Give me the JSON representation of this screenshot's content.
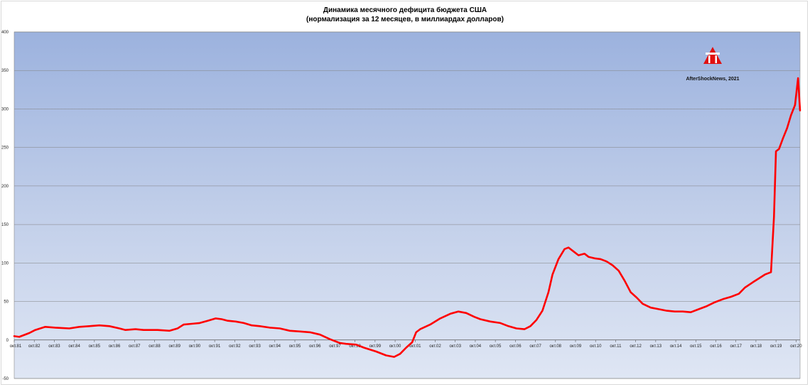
{
  "chart_data": {
    "type": "line",
    "title": "Динамика месячного дефицита бюджета США",
    "subtitle": "(нормализация за 12 месяцев, в миллиардах долларов)",
    "xlabel": "",
    "ylabel": "",
    "ylim": [
      -50,
      400
    ],
    "yticks": [
      "-50",
      "0",
      "50",
      "100",
      "150",
      "200",
      "250",
      "300",
      "350",
      "400"
    ],
    "x_tick_labels": [
      "окт.81",
      "окт.82",
      "окт.83",
      "окт.84",
      "окт.85",
      "окт.86",
      "окт.87",
      "окт.88",
      "окт.89",
      "окт.90",
      "окт.91",
      "окт.92",
      "окт.93",
      "окт.94",
      "окт.95",
      "окт.96",
      "окт.97",
      "окт.98",
      "окт.99",
      "окт.00",
      "окт.01",
      "окт.02",
      "окт.03",
      "окт.04",
      "окт.05",
      "окт.06",
      "окт.07",
      "окт.08",
      "окт.09",
      "окт.10",
      "окт.11",
      "окт.12",
      "окт.13",
      "окт.14",
      "окт.15",
      "окт.16",
      "окт.17",
      "окт.18",
      "окт.19",
      "окт.20"
    ],
    "grid": true,
    "line_color": "#ff0000",
    "series": [
      {
        "name": "",
        "x": [
          1981.75,
          1982.0,
          1982.5,
          1982.8,
          1983.3,
          1983.8,
          1984.5,
          1985.0,
          1985.5,
          1986.0,
          1986.5,
          1987.0,
          1987.3,
          1987.8,
          1988.2,
          1988.6,
          1988.9,
          1989.5,
          1989.9,
          1990.2,
          1990.6,
          1991.0,
          1991.4,
          1991.8,
          1992.1,
          1992.4,
          1992.8,
          1993.2,
          1993.6,
          1994.0,
          1994.5,
          1995.0,
          1995.5,
          1996.0,
          1996.5,
          1997.0,
          1997.5,
          1998.0,
          1998.3,
          1998.8,
          1999.2,
          1999.8,
          2000.3,
          2000.7,
          2001.0,
          2001.3,
          2001.6,
          2001.8,
          2002.0,
          2002.5,
          2003.0,
          2003.5,
          2003.9,
          2004.3,
          2004.7,
          2005.0,
          2005.5,
          2006.0,
          2006.4,
          2006.8,
          2007.2,
          2007.5,
          2007.8,
          2008.1,
          2008.4,
          2008.6,
          2008.9,
          2009.2,
          2009.4,
          2009.7,
          2009.9,
          2010.2,
          2010.4,
          2010.7,
          2011.0,
          2011.3,
          2011.6,
          2011.9,
          2012.2,
          2012.5,
          2012.8,
          2013.1,
          2013.5,
          2013.9,
          2014.3,
          2014.7,
          2015.1,
          2015.5,
          2015.9,
          2016.3,
          2016.7,
          2017.1,
          2017.5,
          2017.9,
          2018.2,
          2018.6,
          2018.9,
          2019.2,
          2019.5,
          2019.65,
          2019.75,
          2019.9,
          2020.1,
          2020.3,
          2020.5,
          2020.7,
          2020.85,
          2020.95
        ],
        "y": [
          5,
          4,
          9,
          13,
          17,
          16,
          15,
          17,
          18,
          19,
          18,
          15,
          13,
          14,
          13,
          13,
          13,
          12,
          15,
          20,
          21,
          22,
          25,
          28,
          27,
          25,
          24,
          22,
          19,
          18,
          16,
          15,
          12,
          11,
          10,
          7,
          1,
          -4,
          -5,
          -6,
          -10,
          -15,
          -20,
          -22,
          -18,
          -10,
          -3,
          10,
          14,
          20,
          28,
          34,
          37,
          35,
          30,
          27,
          24,
          22,
          18,
          15,
          14,
          18,
          26,
          38,
          62,
          85,
          105,
          118,
          120,
          114,
          110,
          112,
          108,
          106,
          105,
          102,
          97,
          90,
          77,
          62,
          55,
          47,
          42,
          40,
          38,
          37,
          37,
          36,
          40,
          44,
          49,
          53,
          56,
          60,
          68,
          75,
          80,
          85,
          88,
          160,
          245,
          248,
          262,
          275,
          292,
          305,
          340,
          298
        ]
      }
    ],
    "watermark": {
      "text": "AfterShockNews, 2021",
      "logo_color": "#e01010"
    }
  }
}
